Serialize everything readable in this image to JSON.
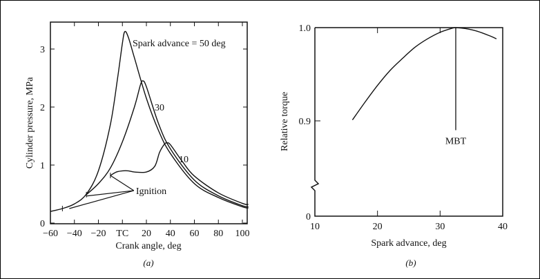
{
  "chart_data": [
    {
      "type": "line",
      "panel_label": "(a)",
      "xlabel": "Crank angle, deg",
      "ylabel": "Cylinder pressure, MPa",
      "xlim": [
        -60,
        105
      ],
      "ylim": [
        0,
        3.5
      ],
      "xticks": [
        -60,
        -40,
        -20,
        0,
        20,
        40,
        60,
        80,
        100
      ],
      "xtick_labels": [
        "−60",
        "−40",
        "−20",
        "TC",
        "20",
        "40",
        "60",
        "80",
        "100"
      ],
      "yticks": [
        0,
        1,
        2,
        3
      ],
      "ytick_labels": [
        "0",
        "1",
        "2",
        "3"
      ],
      "series": [
        {
          "name": "Spark advance = 50 deg",
          "label": "Spark advance = 50 deg",
          "x": [
            -60,
            -50,
            -40,
            -30,
            -20,
            -10,
            -4,
            0,
            2,
            5,
            10,
            20,
            30,
            40,
            60,
            80,
            100,
            105
          ],
          "y": [
            0.2,
            0.25,
            0.33,
            0.5,
            0.9,
            1.7,
            2.5,
            3.1,
            3.3,
            3.2,
            2.85,
            2.15,
            1.6,
            1.2,
            0.68,
            0.44,
            0.28,
            0.26
          ]
        },
        {
          "name": "30",
          "label": "30",
          "x": [
            -30,
            -20,
            -10,
            0,
            10,
            15,
            17,
            20,
            30,
            40,
            60,
            80,
            100,
            105
          ],
          "y": [
            0.49,
            0.68,
            0.95,
            1.4,
            2.0,
            2.38,
            2.45,
            2.35,
            1.72,
            1.28,
            0.74,
            0.47,
            0.3,
            0.28
          ]
        },
        {
          "name": "10",
          "label": "10",
          "x": [
            -10,
            -5,
            0,
            5,
            10,
            20,
            27,
            31,
            35,
            37,
            40,
            50,
            60,
            80,
            100,
            105
          ],
          "y": [
            0.82,
            0.88,
            0.9,
            0.9,
            0.88,
            0.88,
            0.98,
            1.22,
            1.36,
            1.38,
            1.35,
            1.06,
            0.81,
            0.52,
            0.34,
            0.32
          ]
        }
      ],
      "ignition_points": [
        {
          "x": -50,
          "y": 0.25
        },
        {
          "x": -30,
          "y": 0.49
        },
        {
          "x": -10,
          "y": 0.82
        }
      ],
      "annotations": [
        {
          "text": "Ignition",
          "x": 13,
          "y": 0.56
        }
      ]
    },
    {
      "type": "line",
      "panel_label": "(b)",
      "xlabel": "Spark advance, deg",
      "ylabel": "Relative torque",
      "xlim": [
        10,
        40
      ],
      "ylim": [
        0,
        1.0
      ],
      "y_axis_break": true,
      "xticks": [
        10,
        20,
        30,
        40
      ],
      "xtick_labels": [
        "10",
        "20",
        "30",
        "40"
      ],
      "yticks": [
        0,
        0.9,
        1.0
      ],
      "ytick_labels": [
        "0",
        "0.9",
        "1.0"
      ],
      "series": [
        {
          "name": "Relative torque",
          "x": [
            16,
            18,
            20,
            22,
            24,
            26,
            28,
            30,
            32,
            32.5,
            34,
            36,
            38,
            39
          ],
          "y": [
            0.901,
            0.92,
            0.938,
            0.954,
            0.967,
            0.979,
            0.988,
            0.995,
            0.9995,
            1.0,
            0.999,
            0.996,
            0.991,
            0.988
          ]
        }
      ],
      "annotations": [
        {
          "text": "MBT",
          "x": 32.5,
          "y_top": 1.0,
          "y_bottom": 0.89
        }
      ]
    }
  ]
}
